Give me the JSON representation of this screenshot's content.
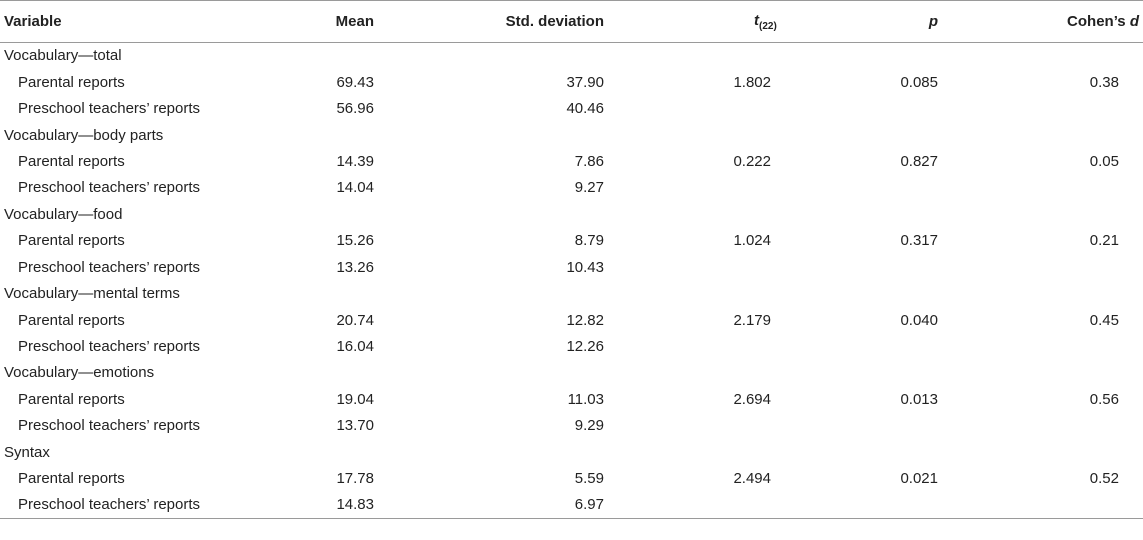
{
  "table": {
    "headers": {
      "variable": "Variable",
      "mean": "Mean",
      "sd": "Std. deviation",
      "t_main": "t",
      "t_sub": "(22)",
      "p": "p",
      "d_prefix": "Cohen’s ",
      "d_var": "d"
    },
    "groups": [
      {
        "label": "Vocabulary—total",
        "rows": [
          {
            "label": "Parental reports",
            "mean": "69.43",
            "sd": "37.90",
            "t": "1.802",
            "p": "0.085",
            "d": "0.38"
          },
          {
            "label": "Preschool teachers’ reports",
            "mean": "56.96",
            "sd": "40.46",
            "t": "",
            "p": "",
            "d": ""
          }
        ]
      },
      {
        "label": "Vocabulary—body parts",
        "rows": [
          {
            "label": "Parental reports",
            "mean": "14.39",
            "sd": "7.86",
            "t": "0.222",
            "p": "0.827",
            "d": "0.05"
          },
          {
            "label": "Preschool teachers’ reports",
            "mean": "14.04",
            "sd": "9.27",
            "t": "",
            "p": "",
            "d": ""
          }
        ]
      },
      {
        "label": "Vocabulary—food",
        "rows": [
          {
            "label": "Parental reports",
            "mean": "15.26",
            "sd": "8.79",
            "t": "1.024",
            "p": "0.317",
            "d": "0.21"
          },
          {
            "label": "Preschool teachers’ reports",
            "mean": "13.26",
            "sd": "10.43",
            "t": "",
            "p": "",
            "d": ""
          }
        ]
      },
      {
        "label": "Vocabulary—mental terms",
        "rows": [
          {
            "label": "Parental reports",
            "mean": "20.74",
            "sd": "12.82",
            "t": "2.179",
            "p": "0.040",
            "d": "0.45"
          },
          {
            "label": "Preschool teachers’ reports",
            "mean": "16.04",
            "sd": "12.26",
            "t": "",
            "p": "",
            "d": ""
          }
        ]
      },
      {
        "label": "Vocabulary—emotions",
        "rows": [
          {
            "label": "Parental reports",
            "mean": "19.04",
            "sd": "11.03",
            "t": "2.694",
            "p": "0.013",
            "d": "0.56"
          },
          {
            "label": "Preschool teachers’ reports",
            "mean": "13.70",
            "sd": "9.29",
            "t": "",
            "p": "",
            "d": ""
          }
        ]
      },
      {
        "label": "Syntax",
        "rows": [
          {
            "label": "Parental reports",
            "mean": "17.78",
            "sd": "5.59",
            "t": "2.494",
            "p": "0.021",
            "d": "0.52"
          },
          {
            "label": "Preschool teachers’ reports",
            "mean": "14.83",
            "sd": "6.97",
            "t": "",
            "p": "",
            "d": ""
          }
        ]
      }
    ]
  }
}
